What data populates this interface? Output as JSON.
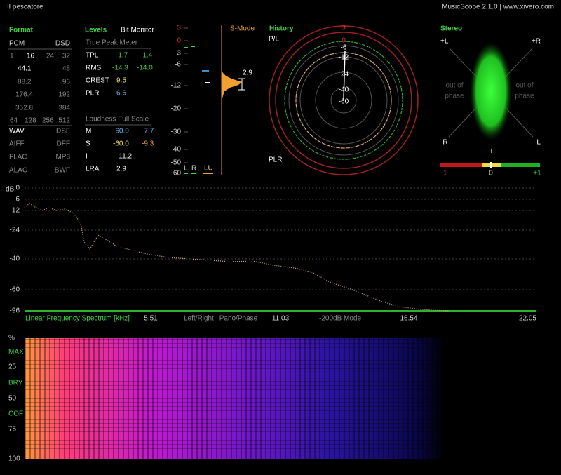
{
  "header": {
    "track": "Il pescatore",
    "app": "MusicScope 2.1.0 | www.xivero.com"
  },
  "format": {
    "title": "Format",
    "pcm": "PCM",
    "dsd": "DSD",
    "bits": [
      "1",
      "16",
      "24",
      "32"
    ],
    "rates": [
      [
        "44.1",
        "48"
      ],
      [
        "88.2",
        "96"
      ],
      [
        "176.4",
        "192"
      ],
      [
        "352.8",
        "384"
      ]
    ],
    "dsd_rates": [
      "64",
      "128",
      "256",
      "512"
    ],
    "containers": [
      [
        "WAV",
        "DSF"
      ],
      [
        "AIFF",
        "DFF"
      ],
      [
        "FLAC",
        "MP3"
      ],
      [
        "ALAC",
        "BWF"
      ]
    ]
  },
  "levels": {
    "title": "Levels",
    "bit_monitor": "Bit Monitor",
    "true_peak": {
      "title": "True Peak Meter",
      "rows": [
        [
          "TPL",
          "-1.7",
          "-1.4"
        ],
        [
          "RMS",
          "-14.3",
          "-14.0"
        ],
        [
          "CREST",
          "9.5"
        ],
        [
          "PLR",
          "6.6"
        ]
      ]
    },
    "loudness": {
      "title": "Loudness Full Scale",
      "rows": [
        [
          "M",
          "-60.0",
          "-7.7"
        ],
        [
          "S",
          "-60.0",
          "-9.3"
        ],
        [
          "I",
          "-11.2"
        ],
        [
          "LRA",
          "2.9"
        ]
      ]
    }
  },
  "meter": {
    "mode": "S-Mode",
    "readout": "2.9",
    "scale": [
      "3",
      "0",
      "-3",
      "-6",
      "-12",
      "-20",
      "-30",
      "-40",
      "-50",
      "-60"
    ],
    "channels": [
      "L",
      "R",
      "LU"
    ]
  },
  "history": {
    "title": "History",
    "top_label": "P/L",
    "bottom_label": "PLR",
    "rings": [
      "3",
      "0",
      "-6",
      "-12",
      "-24",
      "-40",
      "-60"
    ]
  },
  "stereo": {
    "title": "Stereo",
    "corners": [
      "+L",
      "+R",
      "-R",
      "-L"
    ],
    "out_of_phase": [
      "out of",
      "phase"
    ],
    "scale": [
      "-1",
      "0",
      "+1"
    ]
  },
  "spectrum": {
    "unit": "dB",
    "yticks": [
      "0",
      "-6",
      "-12",
      "-24",
      "-40",
      "-60",
      "-96"
    ],
    "xticks": [
      "5.51",
      "11.03",
      "16.54",
      "22.05"
    ],
    "title": "Linear Frequency Spectrum [kHz]",
    "modes": [
      "Left/Right",
      "Pano/Phase",
      "-200dB Mode"
    ]
  },
  "spectrogram": {
    "labels": [
      "%",
      "MAX",
      "25",
      "BRY",
      "50",
      "COF",
      "75",
      "100"
    ]
  }
}
